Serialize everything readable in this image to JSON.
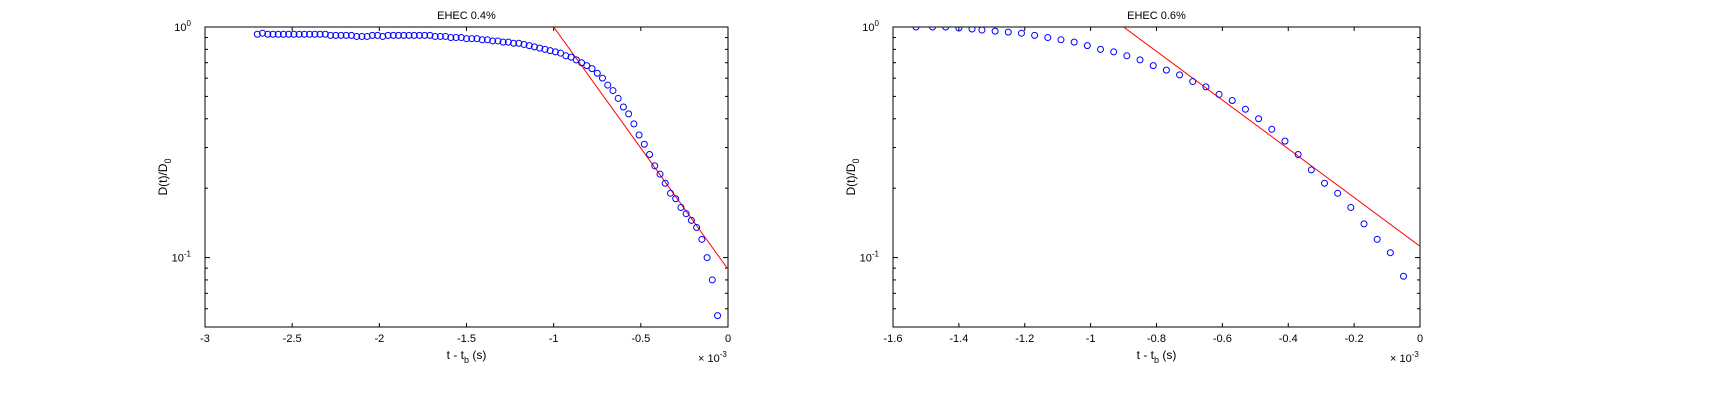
{
  "chart_data": [
    {
      "type": "scatter",
      "title": "EHEC 0.4%",
      "xlabel_main": "t - t",
      "xlabel_sub": "b",
      "xlabel_unit": " (s)",
      "ylabel_main": "D(t)/D",
      "ylabel_sub": "0",
      "x_exponent_base": "× 10",
      "x_exponent": "-3",
      "xlim": [
        -3,
        0
      ],
      "ylim": [
        0.05,
        1
      ],
      "yscale": "log",
      "xticks": [
        -3,
        -2.5,
        -2,
        -1.5,
        -1,
        -0.5,
        0
      ],
      "xtick_labels": [
        "-3",
        "-2.5",
        "-2",
        "-1.5",
        "-1",
        "-0.5",
        "0"
      ],
      "ytick_labels": [
        {
          "base": "10",
          "exp": "0"
        },
        {
          "base": "10",
          "exp": "-1"
        }
      ],
      "marker_color": "#0000ff",
      "line_color": "#ff0000",
      "series": [
        {
          "type": "scatter",
          "x": [
            -2.7,
            -2.67,
            -2.64,
            -2.61,
            -2.58,
            -2.55,
            -2.52,
            -2.49,
            -2.46,
            -2.43,
            -2.4,
            -2.37,
            -2.34,
            -2.31,
            -2.28,
            -2.25,
            -2.22,
            -2.19,
            -2.16,
            -2.13,
            -2.1,
            -2.07,
            -2.04,
            -2.01,
            -1.98,
            -1.95,
            -1.92,
            -1.89,
            -1.86,
            -1.83,
            -1.8,
            -1.77,
            -1.74,
            -1.71,
            -1.68,
            -1.65,
            -1.62,
            -1.59,
            -1.56,
            -1.53,
            -1.5,
            -1.47,
            -1.44,
            -1.41,
            -1.38,
            -1.35,
            -1.32,
            -1.29,
            -1.26,
            -1.23,
            -1.2,
            -1.17,
            -1.14,
            -1.11,
            -1.08,
            -1.05,
            -1.02,
            -0.99,
            -0.96,
            -0.93,
            -0.9,
            -0.87,
            -0.84,
            -0.81,
            -0.78,
            -0.75,
            -0.72,
            -0.69,
            -0.66,
            -0.63,
            -0.6,
            -0.57,
            -0.54,
            -0.51,
            -0.48,
            -0.45,
            -0.42,
            -0.39,
            -0.36,
            -0.33,
            -0.3,
            -0.27,
            -0.24,
            -0.21,
            -0.18,
            -0.15,
            -0.12,
            -0.09,
            -0.06
          ],
          "y": [
            0.93,
            0.94,
            0.93,
            0.93,
            0.93,
            0.93,
            0.93,
            0.93,
            0.93,
            0.93,
            0.93,
            0.93,
            0.93,
            0.93,
            0.92,
            0.92,
            0.92,
            0.92,
            0.92,
            0.91,
            0.91,
            0.91,
            0.92,
            0.92,
            0.91,
            0.92,
            0.92,
            0.92,
            0.92,
            0.92,
            0.92,
            0.92,
            0.92,
            0.92,
            0.91,
            0.91,
            0.91,
            0.9,
            0.9,
            0.9,
            0.89,
            0.89,
            0.89,
            0.88,
            0.88,
            0.87,
            0.87,
            0.86,
            0.86,
            0.85,
            0.85,
            0.84,
            0.83,
            0.82,
            0.81,
            0.8,
            0.79,
            0.78,
            0.77,
            0.75,
            0.74,
            0.72,
            0.7,
            0.68,
            0.66,
            0.63,
            0.6,
            0.56,
            0.53,
            0.49,
            0.45,
            0.42,
            0.38,
            0.34,
            0.31,
            0.28,
            0.25,
            0.23,
            0.21,
            0.19,
            0.18,
            0.165,
            0.155,
            0.145,
            0.135,
            0.12,
            0.1,
            0.08,
            0.056
          ]
        },
        {
          "type": "line",
          "x": [
            -1.0,
            0.0
          ],
          "y": [
            1.0,
            0.089
          ]
        }
      ]
    },
    {
      "type": "scatter",
      "title": "EHEC 0.6%",
      "xlabel_main": "t - t",
      "xlabel_sub": "b",
      "xlabel_unit": " (s)",
      "ylabel_main": "D(t)/D",
      "ylabel_sub": "0",
      "x_exponent_base": "× 10",
      "x_exponent": "-3",
      "xlim": [
        -1.6,
        0
      ],
      "ylim": [
        0.05,
        1
      ],
      "yscale": "log",
      "xticks": [
        -1.6,
        -1.4,
        -1.2,
        -1,
        -0.8,
        -0.6,
        -0.4,
        -0.2,
        0
      ],
      "xtick_labels": [
        "-1.6",
        "-1.4",
        "-1.2",
        "-1",
        "-0.8",
        "-0.6",
        "-0.4",
        "-0.2",
        "0"
      ],
      "ytick_labels": [
        {
          "base": "10",
          "exp": "0"
        },
        {
          "base": "10",
          "exp": "-1"
        }
      ],
      "marker_color": "#0000ff",
      "line_color": "#ff0000",
      "series": [
        {
          "type": "scatter",
          "x": [
            -1.53,
            -1.48,
            -1.44,
            -1.4,
            -1.36,
            -1.33,
            -1.29,
            -1.25,
            -1.21,
            -1.17,
            -1.13,
            -1.09,
            -1.05,
            -1.01,
            -0.97,
            -0.93,
            -0.89,
            -0.85,
            -0.81,
            -0.77,
            -0.73,
            -0.69,
            -0.65,
            -0.61,
            -0.57,
            -0.53,
            -0.49,
            -0.45,
            -0.41,
            -0.37,
            -0.33,
            -0.29,
            -0.25,
            -0.21,
            -0.17,
            -0.13,
            -0.09,
            -0.05
          ],
          "y": [
            1.0,
            1.0,
            1.0,
            0.99,
            0.98,
            0.97,
            0.96,
            0.95,
            0.94,
            0.92,
            0.9,
            0.88,
            0.86,
            0.83,
            0.8,
            0.78,
            0.75,
            0.72,
            0.68,
            0.65,
            0.62,
            0.58,
            0.55,
            0.51,
            0.48,
            0.44,
            0.4,
            0.36,
            0.32,
            0.28,
            0.24,
            0.21,
            0.19,
            0.165,
            0.14,
            0.12,
            0.105,
            0.083
          ]
        },
        {
          "type": "line",
          "x": [
            -0.9,
            0.0
          ],
          "y": [
            1.0,
            0.112
          ]
        }
      ]
    }
  ]
}
